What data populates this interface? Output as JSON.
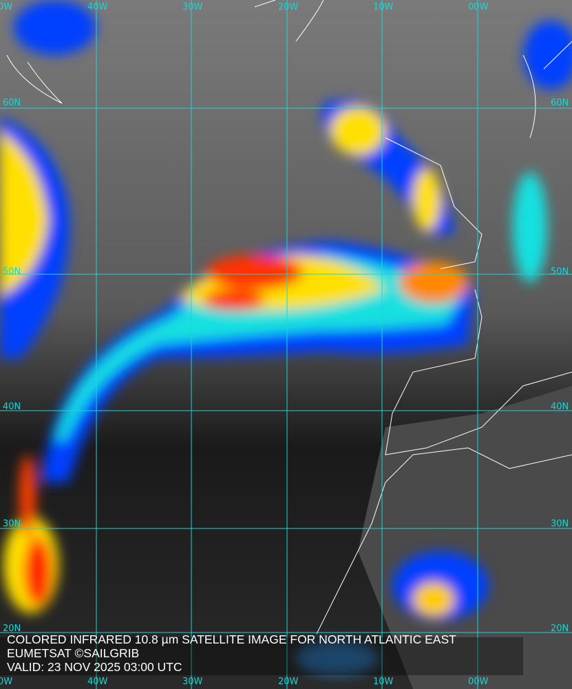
{
  "caption": {
    "title": "COLORED INFRARED 10.8 µm SATELLITE IMAGE FOR NORTH ATLANTIC EAST",
    "credit": "EUMETSAT ©SAILGRIB",
    "valid": "VALID:  23 NOV 2025 03:00 UTC"
  },
  "grid": {
    "longitudes": [
      "0W",
      "40W",
      "30W",
      "20W",
      "10W",
      "00W"
    ],
    "latitudes": [
      "60N",
      "50N",
      "40N",
      "30N",
      "20N"
    ],
    "color": "#19d6d6"
  },
  "colors": {
    "coast": "#ffffff",
    "cold_top": "#ff2000",
    "mid": "#ffff00",
    "low": "#0030ff"
  }
}
